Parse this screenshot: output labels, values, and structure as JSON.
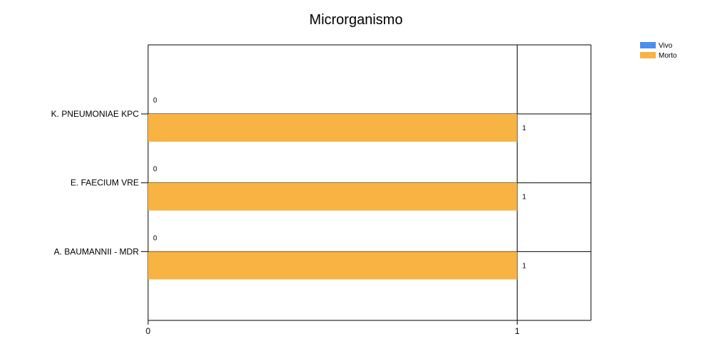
{
  "chart_data": {
    "type": "bar",
    "orientation": "horizontal",
    "title": "Microrganismo",
    "xlabel": "",
    "ylabel": "",
    "categories": [
      "K. PNEUMONIAE KPC",
      "E. FAECIUM VRE",
      "A. BAUMANNII - MDR"
    ],
    "series": [
      {
        "name": "Vivo",
        "values": [
          0,
          0,
          0
        ],
        "color": "#4a8ff0"
      },
      {
        "name": "Morto",
        "values": [
          1,
          1,
          1
        ],
        "color": "#f9b342"
      }
    ],
    "xlim": [
      0,
      1.2
    ],
    "x_ticks": [
      "0",
      "1"
    ],
    "grid": true,
    "legend_position": "top-right"
  }
}
